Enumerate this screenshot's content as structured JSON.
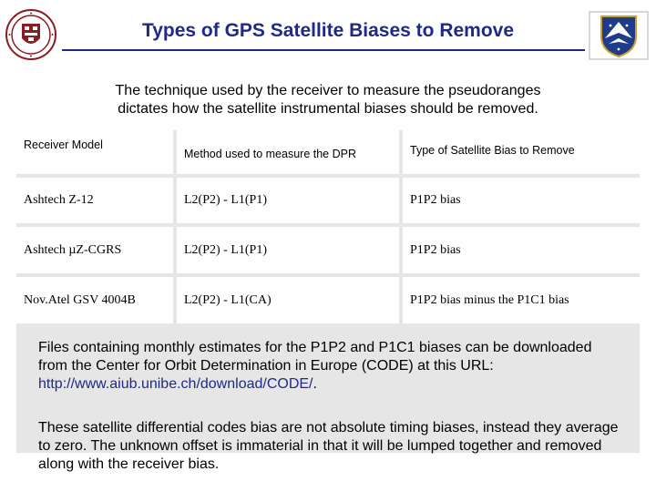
{
  "slide": {
    "title": "Types of GPS Satellite Biases to Remove",
    "subtitle_line1": "The technique used by the receiver to measure the pseudoranges",
    "subtitle_line2": "dictates how the satellite instrumental biases should be removed."
  },
  "logos": {
    "left": "university-seal-icon",
    "right": "air-force-shield-icon"
  },
  "table": {
    "headers": [
      "Receiver Model",
      "Method used to measure the DPR",
      "Type of Satellite Bias to Remove"
    ],
    "rows": [
      [
        "Ashtech Z-12",
        "L2(P2) - L1(P1)",
        "P1P2 bias"
      ],
      [
        "Ashtech µZ-CGRS",
        "L2(P2) - L1(P1)",
        "P1P2 bias"
      ],
      [
        "Nov.Atel GSV 4004B",
        "L2(P2) - L1(CA)",
        "P1P2 bias minus the P1C1 bias"
      ]
    ]
  },
  "paragraphs": {
    "files_prefix": "Files containing monthly estimates for the P1P2 and P1C1 biases can be downloaded from the Center for Orbit Determination in Europe (CODE) at this URL: ",
    "files_url": "http://www.aiub.unibe.ch/download/CODE/",
    "files_suffix": ".",
    "offset_text": "These satellite differential codes bias are not absolute timing biases, instead they average to zero. The unknown offset is immaterial in that it will be lumped together and removed along with the receiver bias."
  },
  "colors": {
    "title": "#1f2a86",
    "grid": "#e6e6e6",
    "seal": "#8b1c24",
    "shield": "#1f3c8c"
  }
}
